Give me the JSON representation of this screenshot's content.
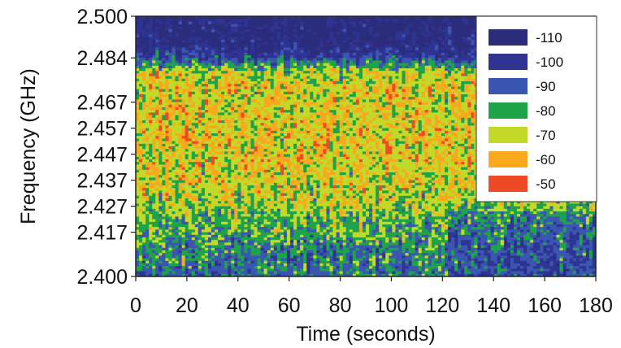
{
  "chart_data": {
    "type": "heatmap",
    "title": "",
    "xlabel": "Time (seconds)",
    "ylabel": "Frequency (GHz)",
    "xlim": [
      0,
      180
    ],
    "ylim": [
      2.4,
      2.5
    ],
    "x_ticks": [
      "0",
      "20",
      "40",
      "60",
      "80",
      "100",
      "120",
      "140",
      "160",
      "180"
    ],
    "y_ticks": [
      {
        "value": 2.5,
        "label": "2.500"
      },
      {
        "value": 2.484,
        "label": "2.484"
      },
      {
        "value": 2.467,
        "label": "2.467"
      },
      {
        "value": 2.457,
        "label": "2.457"
      },
      {
        "value": 2.447,
        "label": "2.447"
      },
      {
        "value": 2.437,
        "label": "2.437"
      },
      {
        "value": 2.427,
        "label": "2.427"
      },
      {
        "value": 2.417,
        "label": "2.417"
      },
      {
        "value": 2.4,
        "label": "2.400"
      }
    ],
    "grid": false,
    "legend_placement": "top-right",
    "legend": [
      {
        "label": "-110",
        "color": "#2b2c7c"
      },
      {
        "label": "-100",
        "color": "#2f3492"
      },
      {
        "label": "-90",
        "color": "#3b56b0"
      },
      {
        "label": "-80",
        "color": "#1ea34a"
      },
      {
        "label": "-70",
        "color": "#c3d92a"
      },
      {
        "label": "-60",
        "color": "#f8a91e"
      },
      {
        "label": "-50",
        "color": "#ef4a26"
      }
    ],
    "power_profile_by_frequency": [
      {
        "frequency": 2.5,
        "level": -110
      },
      {
        "frequency": 2.49,
        "level": -110
      },
      {
        "frequency": 2.484,
        "level": -95
      },
      {
        "frequency": 2.478,
        "level": -68
      },
      {
        "frequency": 2.467,
        "level": -66
      },
      {
        "frequency": 2.447,
        "level": -66
      },
      {
        "frequency": 2.43,
        "level": -70
      },
      {
        "frequency": 2.42,
        "level": -78
      },
      {
        "frequency": 2.41,
        "level": -84
      },
      {
        "frequency": 2.4,
        "level": -86
      }
    ],
    "low_band_activity_change": {
      "time": 122,
      "frequency_max": 2.425
    }
  }
}
